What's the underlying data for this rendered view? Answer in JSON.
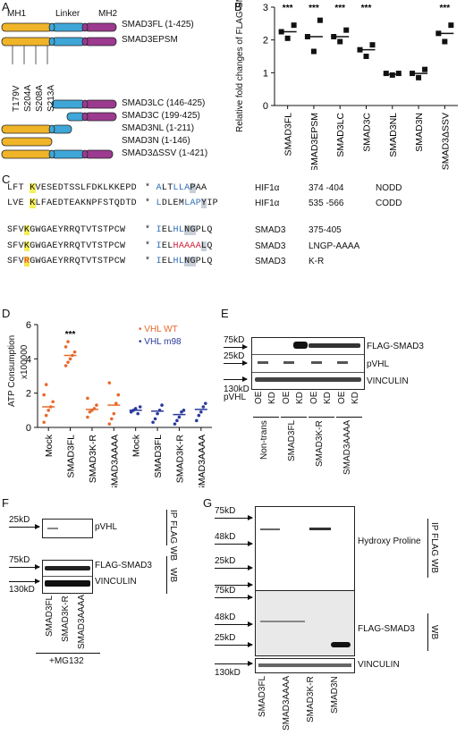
{
  "panels": [
    "A",
    "B",
    "C",
    "D",
    "E",
    "F",
    "G"
  ],
  "panelA": {
    "domains": {
      "mh1": "MH1",
      "linker": "Linker",
      "mh2": "MH2"
    },
    "mutations": [
      "T179V",
      "S204A",
      "S208A",
      "S213A"
    ],
    "constructs": [
      "SMAD3FL (1-425)",
      "SMAD3EPSM",
      "SMAD3LC (146-425)",
      "SMAD3C (199-425)",
      "SMAD3NL (1-211)",
      "SMAD3N (1-146)",
      "SMAD3ΔSSV (1-421)"
    ],
    "colors": {
      "mh1": "#f0b429",
      "linker": "#3fa6d8",
      "mh2": "#9b3a8f"
    }
  },
  "chart_data": {
    "type": "scatter",
    "categories": [
      "SMAD3FL",
      "SMAD3EPSM",
      "SMAD3LC",
      "SMAD3C",
      "SMAD3NL",
      "SMAD3N",
      "SMAD3ΔSSV"
    ],
    "ylabel": "Relative fold changes of FLAG-SMAD3 in KD over OE",
    "ylim": [
      0,
      3
    ],
    "yticks": [
      "0",
      "1",
      "2",
      "3"
    ],
    "points": [
      [
        2.25,
        2.05,
        2.45
      ],
      [
        2.1,
        1.65,
        2.6
      ],
      [
        2.1,
        1.95,
        2.3
      ],
      [
        1.7,
        1.5,
        1.85
      ],
      [
        0.98,
        0.93,
        0.98
      ],
      [
        0.98,
        0.85,
        1.1
      ],
      [
        2.2,
        1.95,
        2.45
      ]
    ],
    "means": [
      2.25,
      2.1,
      2.1,
      1.7,
      0.95,
      0.98,
      2.2
    ],
    "significance": [
      "***",
      "***",
      "***",
      "***",
      "",
      "",
      "***"
    ]
  },
  "panelC": {
    "rows": [
      {
        "hl": "K",
        "pre": "LFT ",
        "post": "VESEDTSSLFDKLKKEPD",
        "star": "*",
        "motif": [
          "A",
          "LT",
          "LLA",
          "P",
          "AA"
        ],
        "protein": "HIF1α",
        "range": "374 -404",
        "name": "NODD"
      },
      {
        "hl": "K",
        "pre": "LVE ",
        "post": "LFAEDTEAKNPFSTQDTD",
        "star": "*",
        "motif": [
          "L",
          "DLEM",
          "LAP",
          "Y",
          "IP"
        ],
        "protein": "HIF1α",
        "range": "535 -566",
        "name": "CODD"
      },
      {
        "hl": "K",
        "pre": "SFV",
        "post": "GWGAEYRRQTVTSTPCW",
        "star": "*",
        "motif": [
          "I",
          "EL",
          "HL",
          "NG",
          "PLQ"
        ],
        "protein": "SMAD3",
        "range": "375-405",
        "name": ""
      },
      {
        "hl": "K",
        "pre": "SFV",
        "post": "GWGAEYRRQTVTSTPCW",
        "star": "*",
        "motif": [
          "I",
          "EL",
          "HAAAA",
          "L",
          "Q"
        ],
        "protein": "SMAD3",
        "range": "LNGP-AAAA",
        "name": ""
      },
      {
        "hl": "R",
        "pre": "SFV",
        "post": "GWGAEYRRQTVTSTPCW",
        "star": "*",
        "motif": [
          "I",
          "EL",
          "HL",
          "NG",
          "PLQ"
        ],
        "protein": "SMAD3",
        "range": "K-R",
        "name": ""
      }
    ]
  },
  "panelD": {
    "ylabel": "ATP Consumption",
    "yunit": "x100000",
    "yticks": [
      "0",
      "2",
      "4",
      "6"
    ],
    "ylim": [
      0,
      6
    ],
    "legend": [
      {
        "label": "VHL WT",
        "color": "#e8692b"
      },
      {
        "label": "VHL m98",
        "color": "#2a3a9c"
      }
    ],
    "categories": [
      "Mock",
      "SMAD3FL",
      "SMAD3K-R",
      "SMAD3AAAA",
      "Mock",
      "SMAD3FL",
      "SMAD3K-R",
      "SMAD3AAAA"
    ],
    "significance": [
      "",
      "***",
      "",
      "",
      "",
      "",
      "",
      ""
    ],
    "points": [
      [
        0.3,
        0.7,
        1.0,
        1.2,
        1.5,
        1.9,
        2.5
      ],
      [
        3.6,
        3.8,
        4.0,
        4.2,
        4.4,
        4.7,
        5.0
      ],
      [
        0.6,
        0.9,
        1.0,
        1.1,
        1.3,
        1.7
      ],
      [
        0.2,
        0.5,
        0.8,
        1.4,
        1.9,
        2.6
      ],
      [
        0.9,
        1.0,
        1.1,
        0.8,
        1.2
      ],
      [
        0.3,
        0.5,
        0.8,
        1.0,
        1.3
      ],
      [
        0.2,
        0.4,
        0.6,
        0.9,
        1.0
      ],
      [
        0.4,
        0.7,
        0.9,
        1.2,
        1.4
      ]
    ],
    "means": [
      1.2,
      4.2,
      1.05,
      1.3,
      1.0,
      0.95,
      0.75,
      1.05
    ]
  },
  "panelE": {
    "markers": [
      "75kD",
      "25kD",
      "130kD"
    ],
    "bands": [
      "FLAG-SMAD3",
      "pVHL",
      "VINCULIN"
    ],
    "pvhl_label": "pVHL",
    "lanes": [
      "OE",
      "KD",
      "OE",
      "KD",
      "OE",
      "KD",
      "OE",
      "KD"
    ],
    "groups": [
      "Non-trans",
      "SMAD3FL",
      "SMAD3K-R",
      "SMAD3AAAA"
    ]
  },
  "panelF": {
    "markers": [
      "25kD",
      "75kD",
      "130kD"
    ],
    "bands": [
      "pVHL",
      "FLAG-SMAD3",
      "VINCULIN"
    ],
    "ipwb": "IP FLAG WB",
    "wb": "WB",
    "lanes": [
      "SMAD3FL",
      "SMAD3K-R",
      "SMAD3AAAA"
    ],
    "treatment": "+MG132"
  },
  "panelG": {
    "markers_top": [
      "75kD",
      "48kD",
      "25kD"
    ],
    "markers_mid": [
      "75kD",
      "48kD",
      "25kD"
    ],
    "marker_bottom": "130kD",
    "bands": [
      "Hydroxy Proline",
      "FLAG-SMAD3",
      "VINCULIN"
    ],
    "ipwb": "IP FLAG WB",
    "wb": "WB",
    "lanes": [
      "SMAD3FL",
      "SMAD3AAAA",
      "SMAD3K-R",
      "SMAD3N"
    ]
  }
}
